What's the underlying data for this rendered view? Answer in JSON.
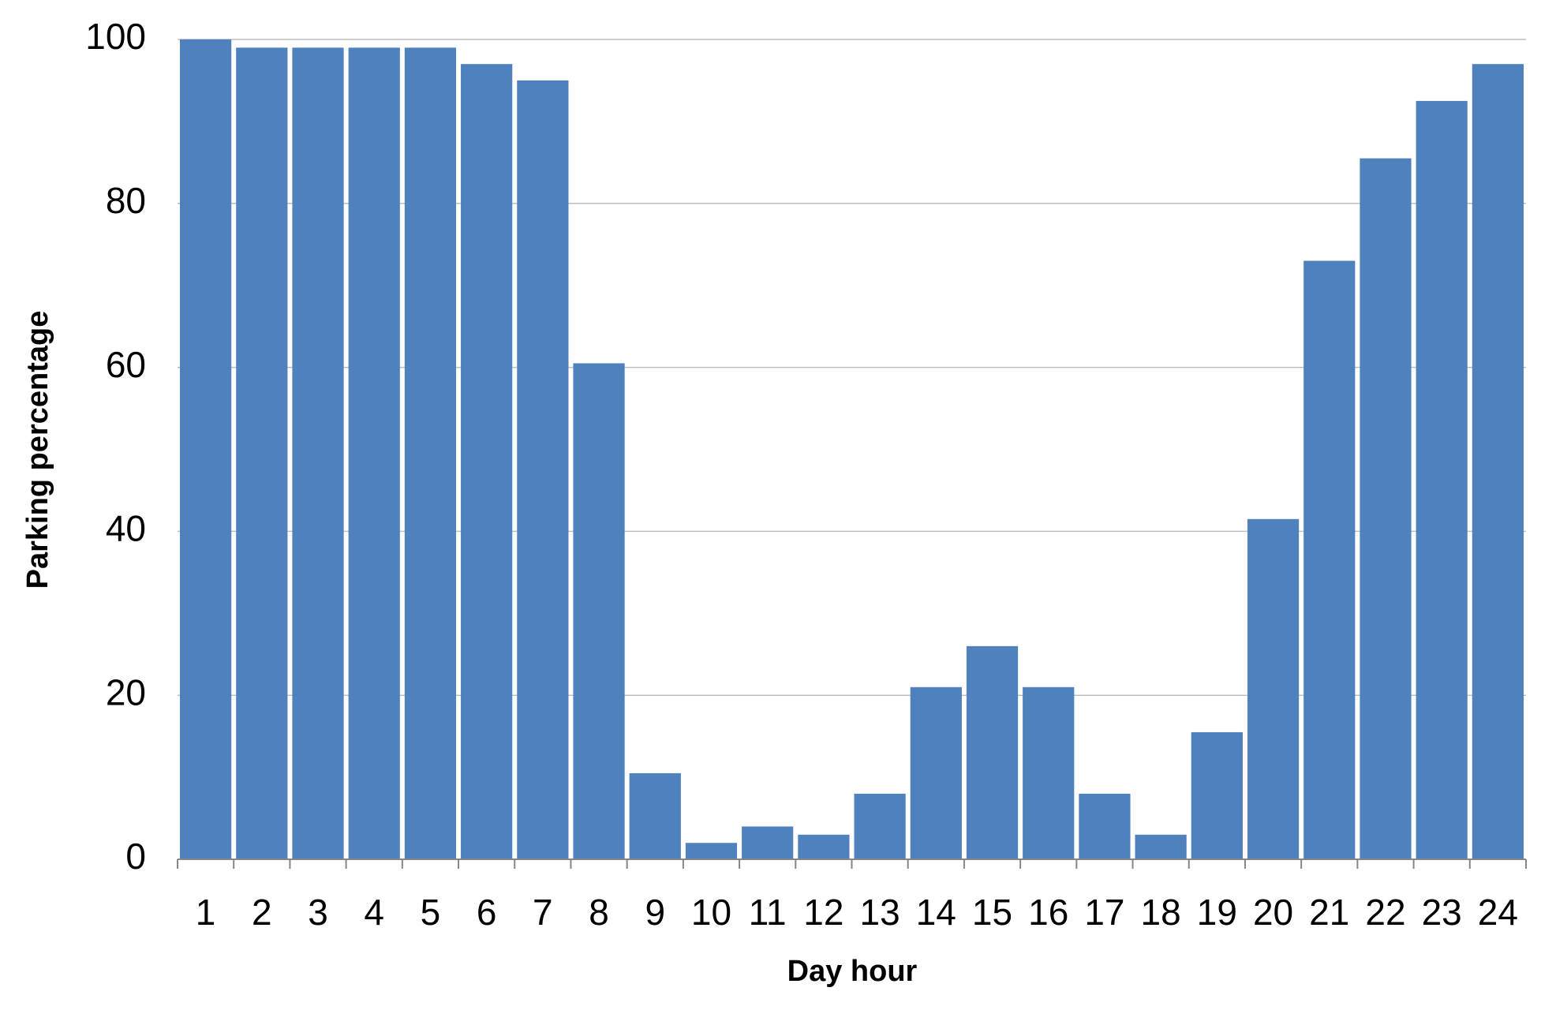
{
  "chart_data": {
    "type": "bar",
    "x_label": "Day hour",
    "y_label": "Parking percentage",
    "categories": [
      "1",
      "2",
      "3",
      "4",
      "5",
      "6",
      "7",
      "8",
      "9",
      "10",
      "11",
      "12",
      "13",
      "14",
      "15",
      "16",
      "17",
      "18",
      "19",
      "20",
      "21",
      "22",
      "23",
      "24"
    ],
    "values": [
      100,
      99,
      99,
      99,
      99,
      97,
      95,
      60.5,
      10.5,
      2,
      4,
      3,
      8,
      21,
      26,
      21,
      8,
      3,
      15.5,
      41.5,
      73,
      85.5,
      92.5,
      97
    ],
    "color": "#4f81bd",
    "ylim": [
      0,
      100
    ],
    "yticks": [
      0,
      20,
      40,
      60,
      80,
      100
    ],
    "grid": true
  }
}
